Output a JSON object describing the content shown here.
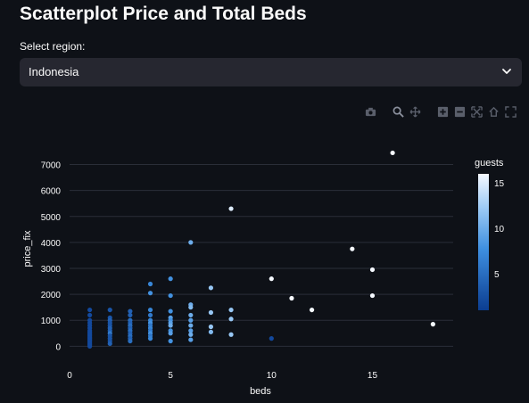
{
  "page": {
    "title": "Scatterplot Price and Total Beds",
    "select_label": "Select region:",
    "select_value": "Indonesia"
  },
  "modebar": {
    "icons": [
      "camera-icon",
      "zoom-icon",
      "pan-icon",
      "zoom-in-icon",
      "zoom-out-icon",
      "autoscale-icon",
      "reset-axes-icon",
      "fullscreen-icon"
    ]
  },
  "colors": {
    "background": "#0e1117",
    "select_bg": "#262730",
    "grid": "#2a2e38",
    "text": "#fafafa",
    "colorscale_low": "#0b3d91",
    "colorscale_mid": "#3e8fe0",
    "colorscale_high": "#f5f9ff"
  },
  "chart_data": {
    "type": "scatter",
    "xlabel": "beds",
    "ylabel": "price_fix",
    "xlim": [
      0,
      19
    ],
    "ylim": [
      -400,
      7500
    ],
    "x_ticks": [
      0,
      5,
      10,
      15
    ],
    "y_ticks": [
      0,
      1000,
      2000,
      3000,
      4000,
      5000,
      6000,
      7000
    ],
    "grid": true,
    "colorbar": {
      "title": "guests",
      "range": [
        1,
        16
      ],
      "ticks": [
        5,
        10,
        15
      ]
    },
    "points": [
      {
        "x": 1,
        "y": 1400,
        "c": 2
      },
      {
        "x": 1,
        "y": 1200,
        "c": 2
      },
      {
        "x": 1,
        "y": 1000,
        "c": 2
      },
      {
        "x": 1,
        "y": 900,
        "c": 2
      },
      {
        "x": 1,
        "y": 800,
        "c": 2
      },
      {
        "x": 1,
        "y": 700,
        "c": 2
      },
      {
        "x": 1,
        "y": 600,
        "c": 2
      },
      {
        "x": 1,
        "y": 550,
        "c": 2
      },
      {
        "x": 1,
        "y": 500,
        "c": 2
      },
      {
        "x": 1,
        "y": 450,
        "c": 2
      },
      {
        "x": 1,
        "y": 400,
        "c": 2
      },
      {
        "x": 1,
        "y": 350,
        "c": 2
      },
      {
        "x": 1,
        "y": 300,
        "c": 2
      },
      {
        "x": 1,
        "y": 250,
        "c": 2
      },
      {
        "x": 1,
        "y": 200,
        "c": 2
      },
      {
        "x": 1,
        "y": 150,
        "c": 2
      },
      {
        "x": 1,
        "y": 100,
        "c": 2
      },
      {
        "x": 1,
        "y": 50,
        "c": 2
      },
      {
        "x": 1,
        "y": 0,
        "c": 2
      },
      {
        "x": 2,
        "y": 1400,
        "c": 3
      },
      {
        "x": 2,
        "y": 1100,
        "c": 3
      },
      {
        "x": 2,
        "y": 1000,
        "c": 4
      },
      {
        "x": 2,
        "y": 900,
        "c": 3
      },
      {
        "x": 2,
        "y": 800,
        "c": 3
      },
      {
        "x": 2,
        "y": 700,
        "c": 4
      },
      {
        "x": 2,
        "y": 600,
        "c": 4
      },
      {
        "x": 2,
        "y": 500,
        "c": 6
      },
      {
        "x": 2,
        "y": 400,
        "c": 3
      },
      {
        "x": 2,
        "y": 300,
        "c": 3
      },
      {
        "x": 2,
        "y": 200,
        "c": 3
      },
      {
        "x": 2,
        "y": 100,
        "c": 4
      },
      {
        "x": 3,
        "y": 1350,
        "c": 4
      },
      {
        "x": 3,
        "y": 1200,
        "c": 4
      },
      {
        "x": 3,
        "y": 1000,
        "c": 5
      },
      {
        "x": 3,
        "y": 900,
        "c": 4
      },
      {
        "x": 3,
        "y": 800,
        "c": 5
      },
      {
        "x": 3,
        "y": 700,
        "c": 4
      },
      {
        "x": 3,
        "y": 600,
        "c": 5
      },
      {
        "x": 3,
        "y": 500,
        "c": 4
      },
      {
        "x": 3,
        "y": 400,
        "c": 5
      },
      {
        "x": 3,
        "y": 300,
        "c": 4
      },
      {
        "x": 3,
        "y": 200,
        "c": 5
      },
      {
        "x": 4,
        "y": 2400,
        "c": 7
      },
      {
        "x": 4,
        "y": 2050,
        "c": 8
      },
      {
        "x": 4,
        "y": 1400,
        "c": 7
      },
      {
        "x": 4,
        "y": 1200,
        "c": 6
      },
      {
        "x": 4,
        "y": 1000,
        "c": 7
      },
      {
        "x": 4,
        "y": 900,
        "c": 8
      },
      {
        "x": 4,
        "y": 800,
        "c": 6
      },
      {
        "x": 4,
        "y": 700,
        "c": 7
      },
      {
        "x": 4,
        "y": 600,
        "c": 6
      },
      {
        "x": 4,
        "y": 500,
        "c": 8
      },
      {
        "x": 4,
        "y": 400,
        "c": 6
      },
      {
        "x": 4,
        "y": 300,
        "c": 7
      },
      {
        "x": 5,
        "y": 2600,
        "c": 8
      },
      {
        "x": 5,
        "y": 1950,
        "c": 8
      },
      {
        "x": 5,
        "y": 1350,
        "c": 8
      },
      {
        "x": 5,
        "y": 1100,
        "c": 9
      },
      {
        "x": 5,
        "y": 1000,
        "c": 8
      },
      {
        "x": 5,
        "y": 900,
        "c": 9
      },
      {
        "x": 5,
        "y": 800,
        "c": 10
      },
      {
        "x": 5,
        "y": 600,
        "c": 8
      },
      {
        "x": 5,
        "y": 500,
        "c": 9
      },
      {
        "x": 5,
        "y": 200,
        "c": 8
      },
      {
        "x": 6,
        "y": 4000,
        "c": 10
      },
      {
        "x": 6,
        "y": 1600,
        "c": 10
      },
      {
        "x": 6,
        "y": 1500,
        "c": 11
      },
      {
        "x": 6,
        "y": 1200,
        "c": 10
      },
      {
        "x": 6,
        "y": 1000,
        "c": 9
      },
      {
        "x": 6,
        "y": 800,
        "c": 10
      },
      {
        "x": 6,
        "y": 600,
        "c": 9
      },
      {
        "x": 6,
        "y": 450,
        "c": 10
      },
      {
        "x": 6,
        "y": 250,
        "c": 9
      },
      {
        "x": 7,
        "y": 2250,
        "c": 12
      },
      {
        "x": 7,
        "y": 1300,
        "c": 12
      },
      {
        "x": 7,
        "y": 750,
        "c": 12
      },
      {
        "x": 7,
        "y": 550,
        "c": 11
      },
      {
        "x": 8,
        "y": 5300,
        "c": 15
      },
      {
        "x": 8,
        "y": 1400,
        "c": 12
      },
      {
        "x": 8,
        "y": 1050,
        "c": 12
      },
      {
        "x": 8,
        "y": 450,
        "c": 12
      },
      {
        "x": 10,
        "y": 2600,
        "c": 16
      },
      {
        "x": 10,
        "y": 300,
        "c": 2
      },
      {
        "x": 11,
        "y": 1850,
        "c": 16
      },
      {
        "x": 12,
        "y": 1400,
        "c": 16
      },
      {
        "x": 14,
        "y": 3750,
        "c": 16
      },
      {
        "x": 15,
        "y": 2950,
        "c": 16
      },
      {
        "x": 15,
        "y": 1950,
        "c": 16
      },
      {
        "x": 16,
        "y": 7450,
        "c": 16
      },
      {
        "x": 18,
        "y": 850,
        "c": 16
      }
    ]
  }
}
